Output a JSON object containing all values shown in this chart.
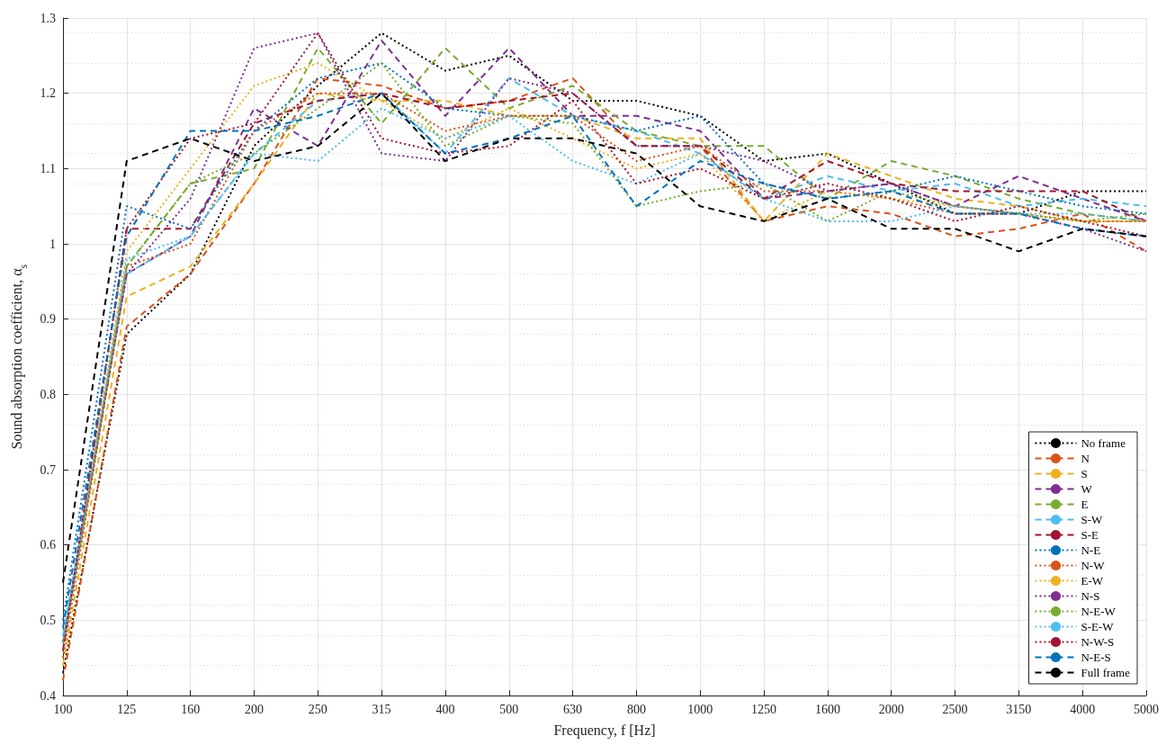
{
  "chart_data": {
    "type": "line",
    "xlabel": "Frequency, f [Hz]",
    "ylabel": "Sound absorption coefficient, α$_{s}$",
    "categories": [
      "100",
      "125",
      "160",
      "200",
      "250",
      "315",
      "400",
      "500",
      "630",
      "800",
      "1000",
      "1250",
      "1600",
      "2000",
      "2500",
      "3150",
      "4000",
      "5000"
    ],
    "ylim": [
      0.4,
      1.3
    ],
    "yticks": [
      0.4,
      0.5,
      0.6,
      0.7,
      0.8,
      0.9,
      1,
      1.1,
      1.2,
      1.3
    ],
    "grid": true,
    "legend": "bottom right",
    "marker": "none",
    "series": [
      {
        "name": "No frame",
        "color": "#000000",
        "line_style": "dotted",
        "values": [
          0.43,
          0.88,
          0.96,
          1.13,
          1.21,
          1.28,
          1.23,
          1.25,
          1.19,
          1.19,
          1.17,
          1.11,
          1.12,
          1.08,
          1.04,
          1.04,
          1.07,
          1.07
        ]
      },
      {
        "name": "N",
        "color": "#d95319",
        "line_style": "dashed",
        "values": [
          0.42,
          0.89,
          0.96,
          1.08,
          1.22,
          1.21,
          1.18,
          1.19,
          1.22,
          1.13,
          1.13,
          1.03,
          1.05,
          1.04,
          1.01,
          1.02,
          1.04,
          0.99
        ]
      },
      {
        "name": "S",
        "color": "#edb120",
        "line_style": "dashed",
        "values": [
          0.44,
          0.93,
          0.97,
          1.08,
          1.2,
          1.19,
          1.19,
          1.17,
          1.17,
          1.14,
          1.14,
          1.03,
          1.12,
          1.09,
          1.06,
          1.05,
          1.03,
          1.03
        ]
      },
      {
        "name": "W",
        "color": "#7e2f8e",
        "line_style": "dashed",
        "values": [
          0.47,
          0.96,
          1.01,
          1.18,
          1.13,
          1.27,
          1.17,
          1.26,
          1.17,
          1.17,
          1.15,
          1.06,
          1.07,
          1.08,
          1.05,
          1.09,
          1.06,
          1.03
        ]
      },
      {
        "name": "E",
        "color": "#77ac30",
        "line_style": "dashed",
        "values": [
          0.47,
          0.97,
          1.08,
          1.1,
          1.26,
          1.16,
          1.26,
          1.18,
          1.21,
          1.15,
          1.13,
          1.13,
          1.06,
          1.11,
          1.09,
          1.06,
          1.04,
          1.03
        ]
      },
      {
        "name": "S-W",
        "color": "#4dbeee",
        "line_style": "dashed",
        "values": [
          0.48,
          0.96,
          1.01,
          1.12,
          1.19,
          1.2,
          1.12,
          1.22,
          1.17,
          1.15,
          1.12,
          1.06,
          1.09,
          1.07,
          1.08,
          1.05,
          1.06,
          1.05
        ]
      },
      {
        "name": "S-E",
        "color": "#a2142f",
        "line_style": "dashed",
        "values": [
          0.46,
          1.02,
          1.02,
          1.16,
          1.19,
          1.2,
          1.18,
          1.19,
          1.2,
          1.13,
          1.13,
          1.06,
          1.11,
          1.08,
          1.07,
          1.07,
          1.07,
          1.03
        ]
      },
      {
        "name": "N-E",
        "color": "#0072bd",
        "line_style": "dotted",
        "values": [
          0.5,
          1.05,
          1.02,
          1.15,
          1.22,
          1.24,
          1.18,
          1.17,
          1.17,
          1.15,
          1.17,
          1.08,
          1.06,
          1.07,
          1.09,
          1.07,
          1.05,
          1.04
        ]
      },
      {
        "name": "N-W",
        "color": "#d95319",
        "line_style": "dotted",
        "values": [
          0.45,
          0.97,
          1,
          1.15,
          1.2,
          1.2,
          1.15,
          1.17,
          1.17,
          1.11,
          1.13,
          1.07,
          1.07,
          1.06,
          1.04,
          1.04,
          1.03,
          1.03
        ]
      },
      {
        "name": "E-W",
        "color": "#edb120",
        "line_style": "dotted",
        "values": [
          0.46,
          0.99,
          1.1,
          1.21,
          1.24,
          1.19,
          1.14,
          1.18,
          1.14,
          1.1,
          1.12,
          1.03,
          1.07,
          1.06,
          1.05,
          1.04,
          1.03,
          1.03
        ]
      },
      {
        "name": "N-S",
        "color": "#7e2f8e",
        "line_style": "dotted",
        "values": [
          0.47,
          0.96,
          1.06,
          1.26,
          1.28,
          1.12,
          1.11,
          1.22,
          1.2,
          1.13,
          1.13,
          1.11,
          1.07,
          1.08,
          1.05,
          1.04,
          1.02,
          0.99
        ]
      },
      {
        "name": "N-E-W",
        "color": "#77ac30",
        "line_style": "dotted",
        "values": [
          0.46,
          0.97,
          1.08,
          1.12,
          1.18,
          1.24,
          1.13,
          1.17,
          1.16,
          1.05,
          1.07,
          1.08,
          1.03,
          1.07,
          1.05,
          1.04,
          1.03,
          1.04
        ]
      },
      {
        "name": "S-E-W",
        "color": "#4dbeee",
        "line_style": "dotted",
        "values": [
          0.47,
          0.98,
          1.01,
          1.12,
          1.11,
          1.18,
          1.14,
          1.17,
          1.11,
          1.08,
          1.12,
          1.06,
          1.03,
          1.03,
          1.05,
          1.04,
          1.04,
          1.03
        ]
      },
      {
        "name": "N-W-S",
        "color": "#a2142f",
        "line_style": "dotted",
        "values": [
          0.46,
          1.02,
          1.14,
          1.16,
          1.28,
          1.14,
          1.12,
          1.13,
          1.19,
          1.08,
          1.1,
          1.06,
          1.08,
          1.06,
          1.03,
          1.05,
          1.03,
          1.01
        ]
      },
      {
        "name": "N-E-S",
        "color": "#0072bd",
        "line_style": "dashed",
        "values": [
          0.49,
          1.01,
          1.15,
          1.15,
          1.17,
          1.2,
          1.12,
          1.14,
          1.17,
          1.05,
          1.11,
          1.08,
          1.06,
          1.07,
          1.04,
          1.04,
          1.02,
          1.01
        ]
      },
      {
        "name": "Full frame",
        "color": "#000000",
        "line_style": "dashed",
        "values": [
          0.55,
          1.11,
          1.14,
          1.11,
          1.13,
          1.2,
          1.11,
          1.14,
          1.14,
          1.12,
          1.05,
          1.03,
          1.06,
          1.02,
          1.02,
          0.99,
          1.02,
          1.01
        ]
      }
    ]
  }
}
